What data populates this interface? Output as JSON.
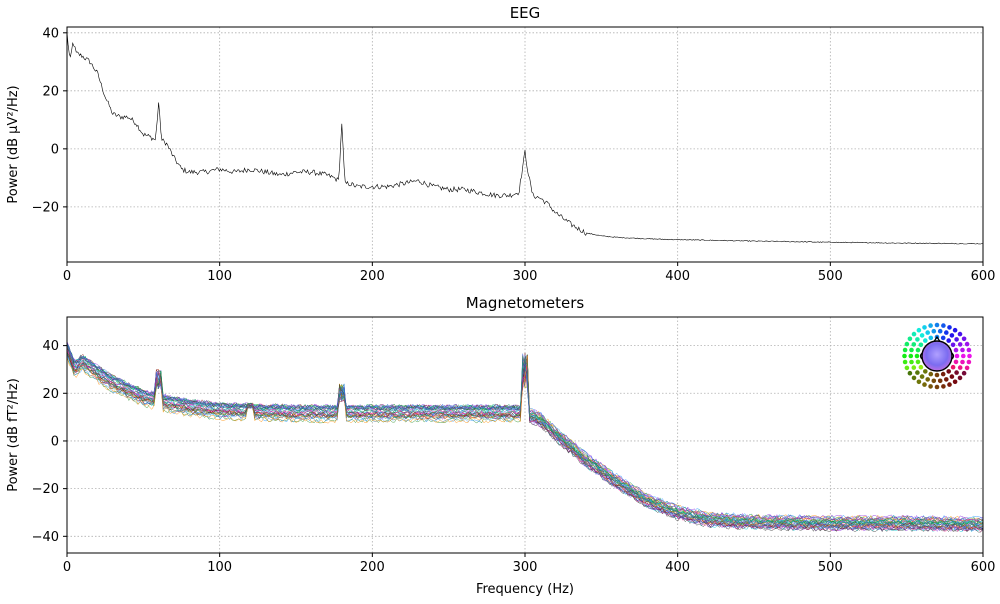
{
  "chart_data": [
    {
      "type": "line",
      "title": "EEG",
      "xlabel": "",
      "ylabel": "Power (dB µV²/Hz)",
      "xlim": [
        0,
        600
      ],
      "ylim": [
        -39,
        42
      ],
      "xticks": [
        0,
        100,
        200,
        300,
        400,
        500,
        600
      ],
      "yticks": [
        -20,
        0,
        20,
        40
      ],
      "grid": true,
      "legend": "none",
      "series": [
        {
          "color": "#000000",
          "x": [
            0,
            2,
            4,
            6,
            10,
            15,
            20,
            25,
            30,
            35,
            40,
            45,
            50,
            55,
            58,
            60,
            62,
            65,
            70,
            75,
            80,
            90,
            100,
            110,
            120,
            130,
            140,
            150,
            160,
            170,
            175,
            178,
            180,
            182,
            185,
            190,
            200,
            210,
            220,
            230,
            240,
            250,
            260,
            270,
            280,
            290,
            296,
            298,
            300,
            302,
            305,
            310,
            315,
            320,
            330,
            340,
            350,
            360,
            380,
            400,
            450,
            500,
            550,
            600
          ],
          "y": [
            40,
            30,
            37,
            33,
            32,
            30,
            26,
            18,
            12,
            11,
            11,
            9,
            5,
            4,
            3,
            16,
            3,
            2,
            -3,
            -7,
            -8,
            -8,
            -7,
            -8,
            -7,
            -8,
            -9,
            -8,
            -8,
            -9,
            -10,
            -11,
            9,
            -12,
            -12,
            -13,
            -13,
            -13,
            -12,
            -11,
            -13,
            -14,
            -14,
            -15,
            -16,
            -16,
            -15,
            -8,
            -1,
            -8,
            -16,
            -17,
            -19,
            -22,
            -26,
            -29,
            -30,
            -30.5,
            -31,
            -31.3,
            -31.8,
            -32.2,
            -32.5,
            -32.7
          ]
        }
      ]
    },
    {
      "type": "line",
      "title": "Magnetometers",
      "xlabel": "Frequency (Hz)",
      "ylabel": "Power (dB fT²/Hz)",
      "xlim": [
        0,
        600
      ],
      "ylim": [
        -47,
        52
      ],
      "xticks": [
        0,
        100,
        200,
        300,
        400,
        500,
        600
      ],
      "yticks": [
        -40,
        -20,
        0,
        20,
        40
      ],
      "grid": true,
      "legend": "inset sensor map, top-right",
      "series_colors": [
        "#8a2be2",
        "#1e90ff",
        "#00ced1",
        "#228b22",
        "#00a040",
        "#7a1010",
        "#ff1493",
        "#ff8c00",
        "#3a3a3a",
        "#6a5acd",
        "#4169e1",
        "#2e8b57"
      ],
      "base_x": [
        0,
        5,
        10,
        20,
        30,
        40,
        50,
        60,
        70,
        80,
        100,
        150,
        200,
        250,
        290,
        300,
        310,
        320,
        340,
        360,
        380,
        400,
        420,
        450,
        500,
        550,
        600
      ],
      "base_y": [
        38,
        30,
        33,
        28,
        24,
        21,
        18,
        16.5,
        15,
        14,
        12.5,
        11.5,
        11.5,
        11.5,
        11.5,
        11.5,
        9,
        3,
        -8,
        -17,
        -25,
        -30,
        -33,
        -34,
        -34.5,
        -34.5,
        -35
      ],
      "peaks": [
        {
          "x": 60,
          "y": 30
        },
        {
          "x": 120,
          "y": 16
        },
        {
          "x": 180,
          "y": 24
        },
        {
          "x": 300,
          "y": 37
        }
      ]
    }
  ]
}
